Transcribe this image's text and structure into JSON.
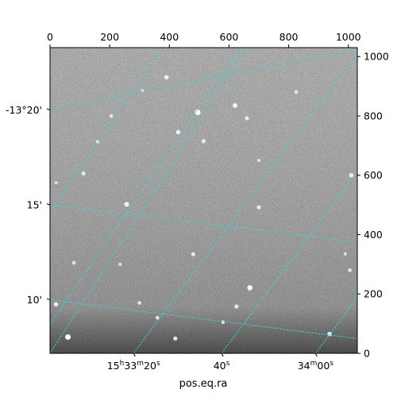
{
  "chart_data": {
    "type": "image",
    "colormap": "gray",
    "xlabel": "pos.eq.ra",
    "pixel_axes": {
      "x": {
        "ticks": [
          0,
          200,
          400,
          600,
          800,
          1000
        ],
        "labels": [
          "0",
          "200",
          "400",
          "600",
          "800",
          "1000"
        ],
        "lim": [
          0,
          1030
        ]
      },
      "y": {
        "ticks": [
          0,
          200,
          400,
          600,
          800,
          1000
        ],
        "labels": [
          "0",
          "200",
          "400",
          "600",
          "800",
          "1000"
        ],
        "lim": [
          0,
          1030
        ]
      }
    },
    "ra_ticks": [
      {
        "label": "15h33m20s",
        "pixel": [
          280,
          0
        ]
      },
      {
        "label": "40s",
        "pixel": [
          575,
          0
        ]
      },
      {
        "label": "34m00s",
        "pixel": [
          890,
          0
        ]
      }
    ],
    "dec_ticks": [
      {
        "label": "-13°20'",
        "pixel": [
          0,
          820
        ]
      },
      {
        "label": "15'",
        "pixel": [
          0,
          500
        ]
      },
      {
        "label": "10'",
        "pixel": [
          0,
          180
        ]
      }
    ],
    "grid": {
      "on": true,
      "color": "#40d0d0",
      "ra_lines": [
        {
          "label": "15h33m20s",
          "from": [
            280,
            0
          ],
          "to": [
            1030,
            1010
          ]
        },
        {
          "label": "40s",
          "from": [
            575,
            0
          ],
          "to": [
            1030,
            612
          ]
        },
        {
          "label": "34m00s",
          "from": [
            890,
            0
          ],
          "to": [
            1030,
            188
          ]
        }
      ],
      "ra_lines_upper": [
        {
          "from": [
            0,
            98
          ],
          "to": [
            640,
            1030
          ]
        },
        {
          "from": [
            0,
            475
          ],
          "to": [
            380,
            1030
          ]
        }
      ],
      "dec_lines": [
        {
          "label": "-13°20'",
          "from": [
            0,
            820
          ],
          "to": [
            1030,
            1026
          ]
        },
        {
          "label": "15'",
          "from": [
            0,
            500
          ],
          "to": [
            1030,
            375
          ]
        },
        {
          "label": "10'",
          "from": [
            0,
            180
          ],
          "to": [
            1030,
            50
          ]
        }
      ],
      "dec_lines_extra": [
        {
          "from": [
            0,
            0
          ],
          "to": [
            660,
            1030
          ]
        }
      ]
    },
    "stars": [
      {
        "x": 495,
        "y": 812,
        "b": 1.0
      },
      {
        "x": 390,
        "y": 930,
        "b": 0.7
      },
      {
        "x": 620,
        "y": 835,
        "b": 0.8
      },
      {
        "x": 660,
        "y": 792,
        "b": 0.6
      },
      {
        "x": 430,
        "y": 745,
        "b": 0.7
      },
      {
        "x": 205,
        "y": 800,
        "b": 0.5
      },
      {
        "x": 515,
        "y": 715,
        "b": 0.6
      },
      {
        "x": 825,
        "y": 880,
        "b": 0.5
      },
      {
        "x": 700,
        "y": 650,
        "b": 0.4
      },
      {
        "x": 160,
        "y": 713,
        "b": 0.5
      },
      {
        "x": 112,
        "y": 606,
        "b": 0.6
      },
      {
        "x": 20,
        "y": 575,
        "b": 0.4
      },
      {
        "x": 257,
        "y": 502,
        "b": 0.8
      },
      {
        "x": 700,
        "y": 492,
        "b": 0.6
      },
      {
        "x": 1010,
        "y": 600,
        "b": 0.7
      },
      {
        "x": 480,
        "y": 334,
        "b": 0.6
      },
      {
        "x": 670,
        "y": 221,
        "b": 0.9
      },
      {
        "x": 625,
        "y": 158,
        "b": 0.6
      },
      {
        "x": 80,
        "y": 305,
        "b": 0.5
      },
      {
        "x": 235,
        "y": 300,
        "b": 0.4
      },
      {
        "x": 60,
        "y": 55,
        "b": 1.0
      },
      {
        "x": 420,
        "y": 50,
        "b": 0.6
      },
      {
        "x": 937,
        "y": 65,
        "b": 0.7
      },
      {
        "x": 1005,
        "y": 280,
        "b": 0.5
      },
      {
        "x": 360,
        "y": 120,
        "b": 0.5
      },
      {
        "x": 580,
        "y": 105,
        "b": 0.5
      },
      {
        "x": 20,
        "y": 165,
        "b": 0.7
      },
      {
        "x": 310,
        "y": 885,
        "b": 0.4
      },
      {
        "x": 990,
        "y": 335,
        "b": 0.4
      },
      {
        "x": 300,
        "y": 170,
        "b": 0.5
      }
    ]
  }
}
